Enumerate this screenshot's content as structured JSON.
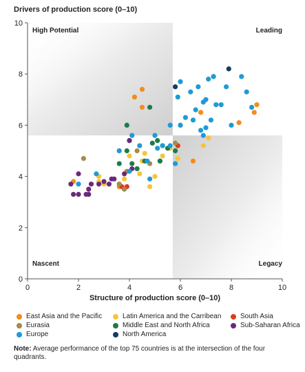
{
  "chart_data": {
    "type": "scatter",
    "ylabel": "Drivers of production score (0–10)",
    "xlabel": "Structure of production score (0–10)",
    "xlim": [
      0,
      10
    ],
    "ylim": [
      0,
      10
    ],
    "x_ticks": [
      "0",
      "2",
      "4",
      "6",
      "8",
      "10"
    ],
    "y_ticks": [
      "0",
      "2",
      "4",
      "6",
      "8",
      "10"
    ],
    "quadrant_split": {
      "x": 5.7,
      "y": 5.6
    },
    "quadrants": {
      "top_left": "High Potential",
      "top_right": "Leading",
      "bottom_left": "Nascent",
      "bottom_right": "Legacy"
    },
    "grid": false,
    "legend_position": "bottom",
    "series": [
      {
        "name": "East Asia and the Pacific",
        "color": "#f28c1e",
        "points": [
          [
            1.8,
            3.8
          ],
          [
            3.6,
            3.6
          ],
          [
            4.2,
            7.1
          ],
          [
            4.5,
            7.4
          ],
          [
            4.5,
            6.7
          ],
          [
            6.0,
            6.0
          ],
          [
            6.8,
            6.5
          ],
          [
            7.3,
            7.9
          ],
          [
            8.3,
            6.1
          ],
          [
            8.9,
            6.5
          ],
          [
            9.0,
            6.8
          ],
          [
            6.5,
            4.6
          ]
        ]
      },
      {
        "name": "Latin America and the Carribean",
        "color": "#f5c53a",
        "points": [
          [
            2.8,
            4.0
          ],
          [
            2.8,
            3.8
          ],
          [
            3.0,
            3.7
          ],
          [
            4.4,
            4.1
          ],
          [
            4.5,
            4.6
          ],
          [
            4.6,
            4.9
          ],
          [
            4.8,
            3.6
          ],
          [
            5.0,
            4.0
          ],
          [
            5.3,
            4.8
          ],
          [
            5.6,
            5.1
          ],
          [
            5.9,
            4.7
          ],
          [
            6.9,
            5.2
          ],
          [
            7.1,
            5.5
          ],
          [
            3.8,
            3.9
          ],
          [
            4.0,
            4.8
          ]
        ]
      },
      {
        "name": "South Asia",
        "color": "#e03a1e",
        "points": [
          [
            3.7,
            3.6
          ],
          [
            3.9,
            3.6
          ],
          [
            5.9,
            5.2
          ]
        ]
      },
      {
        "name": "Eurasia",
        "color": "#a68a4e",
        "points": [
          [
            2.2,
            4.7
          ],
          [
            3.6,
            5.0
          ],
          [
            3.9,
            4.2
          ],
          [
            3.8,
            3.5
          ],
          [
            4.3,
            5.0
          ],
          [
            4.8,
            4.5
          ],
          [
            5.2,
            4.6
          ],
          [
            5.8,
            5.3
          ],
          [
            3.6,
            3.7
          ]
        ]
      },
      {
        "name": "Middle East and North Africa",
        "color": "#1e7a4a",
        "points": [
          [
            3.6,
            4.5
          ],
          [
            3.9,
            6.0
          ],
          [
            4.0,
            5.4
          ],
          [
            4.1,
            4.5
          ],
          [
            4.3,
            4.3
          ],
          [
            4.8,
            6.7
          ],
          [
            4.9,
            5.3
          ],
          [
            5.1,
            5.4
          ],
          [
            5.2,
            4.6
          ],
          [
            5.3,
            5.2
          ],
          [
            5.5,
            5.1
          ],
          [
            5.8,
            5.0
          ],
          [
            3.9,
            5.0
          ],
          [
            4.6,
            4.6
          ]
        ]
      },
      {
        "name": "Sub-Saharan Africa",
        "color": "#6a2a7a",
        "points": [
          [
            1.7,
            3.7
          ],
          [
            1.8,
            3.3
          ],
          [
            2.0,
            3.3
          ],
          [
            2.0,
            4.1
          ],
          [
            2.3,
            3.3
          ],
          [
            2.4,
            3.3
          ],
          [
            2.4,
            3.5
          ],
          [
            2.5,
            3.7
          ],
          [
            2.8,
            3.7
          ],
          [
            3.0,
            3.8
          ],
          [
            3.2,
            3.7
          ],
          [
            3.3,
            3.9
          ],
          [
            3.4,
            3.9
          ],
          [
            3.8,
            4.1
          ],
          [
            4.0,
            5.4
          ],
          [
            4.1,
            4.3
          ]
        ]
      },
      {
        "name": "Europe",
        "color": "#1f9ad6",
        "points": [
          [
            2.0,
            3.7
          ],
          [
            2.7,
            4.1
          ],
          [
            3.6,
            5.0
          ],
          [
            4.1,
            5.6
          ],
          [
            4.4,
            5.2
          ],
          [
            4.7,
            4.6
          ],
          [
            4.8,
            3.9
          ],
          [
            5.0,
            5.6
          ],
          [
            5.1,
            5.1
          ],
          [
            5.3,
            5.2
          ],
          [
            5.6,
            5.2
          ],
          [
            5.6,
            6.0
          ],
          [
            5.9,
            7.1
          ],
          [
            6.2,
            6.3
          ],
          [
            6.4,
            7.3
          ],
          [
            6.5,
            6.2
          ],
          [
            6.6,
            6.6
          ],
          [
            6.7,
            7.5
          ],
          [
            6.9,
            6.9
          ],
          [
            7.0,
            7.0
          ],
          [
            7.1,
            7.8
          ],
          [
            7.2,
            6.2
          ],
          [
            7.3,
            7.9
          ],
          [
            7.4,
            6.8
          ],
          [
            7.6,
            6.8
          ],
          [
            7.8,
            7.5
          ],
          [
            8.0,
            6.0
          ],
          [
            8.4,
            7.9
          ],
          [
            8.6,
            7.3
          ],
          [
            8.8,
            6.7
          ],
          [
            6.0,
            7.7
          ],
          [
            6.8,
            5.8
          ],
          [
            6.9,
            5.6
          ],
          [
            7.0,
            5.9
          ],
          [
            4.0,
            4.2
          ],
          [
            5.8,
            4.5
          ],
          [
            6.0,
            6.0
          ]
        ]
      },
      {
        "name": "North America",
        "color": "#153a66",
        "points": [
          [
            5.8,
            7.5
          ],
          [
            7.9,
            8.2
          ]
        ]
      }
    ]
  },
  "legend": {
    "rows": [
      [
        "East Asia and the Pacific",
        "Latin America and the Carribean",
        "South Asia"
      ],
      [
        "Eurasia",
        "Middle East and North Africa",
        "Sub-Saharan Africa"
      ],
      [
        "Europe",
        "North America",
        ""
      ]
    ]
  },
  "note": {
    "label": "Note:",
    "text": "Average performance of the top 75 countries is at the intersection of the four quadrants."
  }
}
